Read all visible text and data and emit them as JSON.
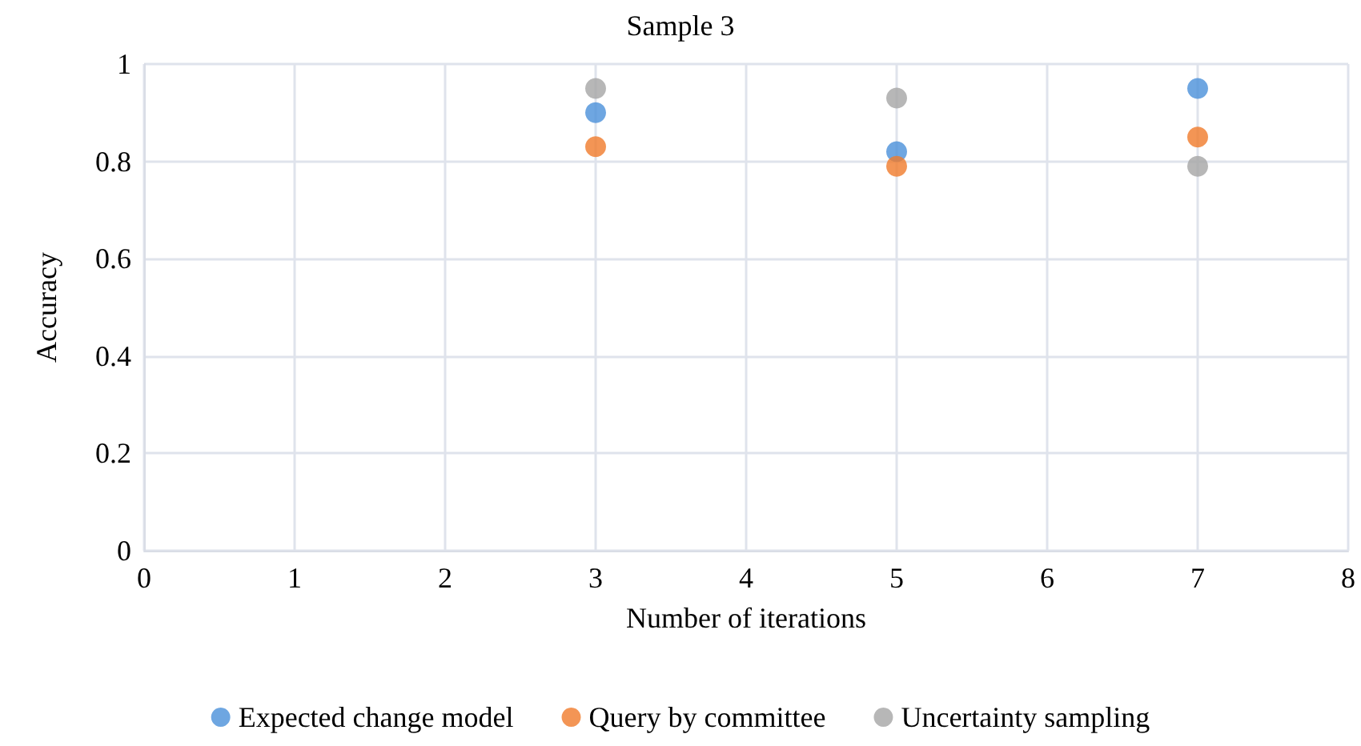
{
  "chart_data": {
    "type": "scatter",
    "title": "Sample 3",
    "xlabel": "Number of iterations",
    "ylabel": "Accuracy",
    "x": [
      3,
      5,
      7
    ],
    "series": [
      {
        "name": "Expected change model",
        "color": "#4a90d9",
        "values": [
          0.9,
          0.82,
          0.95
        ]
      },
      {
        "name": "Query by committee",
        "color": "#f07a2a",
        "values": [
          0.83,
          0.79,
          0.85
        ]
      },
      {
        "name": "Uncertainty sampling",
        "color": "#a5a5a5",
        "values": [
          0.95,
          0.93,
          0.79
        ]
      }
    ],
    "xlim": [
      0,
      8
    ],
    "xticks": [
      0,
      1,
      2,
      3,
      4,
      5,
      6,
      7,
      8
    ],
    "ylim": [
      0,
      1
    ],
    "yticks": [
      0,
      0.2,
      0.4,
      0.6,
      0.8,
      1
    ],
    "grid": true,
    "legend": "bottom",
    "marker": "circle"
  }
}
